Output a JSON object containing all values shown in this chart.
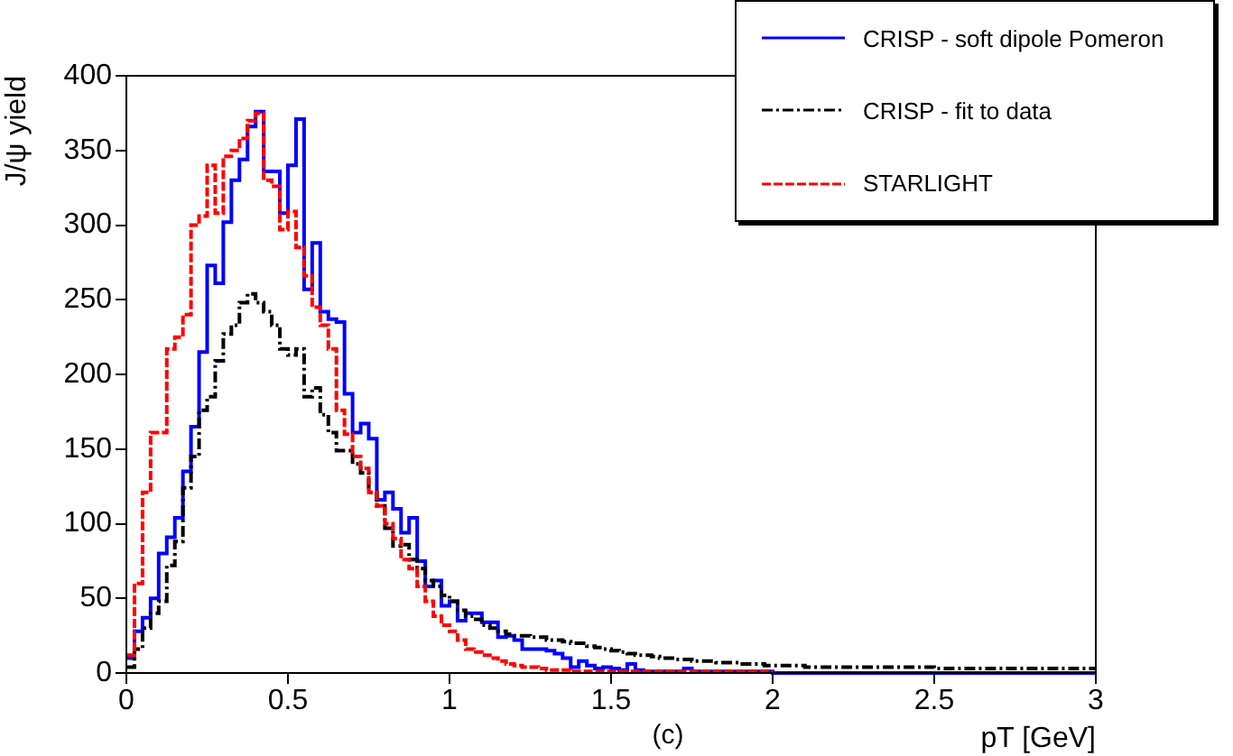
{
  "chart_data": {
    "type": "histogram",
    "xlabel": "pT [GeV]",
    "ylabel": "J/ψ yield",
    "annotations": [
      "(c)"
    ],
    "bins": [
      0,
      0.025,
      0.05,
      0.075,
      0.1,
      0.125,
      0.15,
      0.175,
      0.2,
      0.225,
      0.25,
      0.275,
      0.3,
      0.325,
      0.35,
      0.375,
      0.4,
      0.425,
      0.45,
      0.475,
      0.5,
      0.525,
      0.55,
      0.575,
      0.6,
      0.625,
      0.65,
      0.675,
      0.7,
      0.725,
      0.75,
      0.775,
      0.8,
      0.825,
      0.85,
      0.875,
      0.9,
      0.925,
      0.95,
      0.975,
      1,
      1.025,
      1.05,
      1.075,
      1.1,
      1.125,
      1.15,
      1.175,
      1.2,
      1.225,
      1.25,
      1.275,
      1.3,
      1.325,
      1.35,
      1.375,
      1.4,
      1.425,
      1.45,
      1.475,
      1.5,
      1.525,
      1.55,
      1.575,
      1.6,
      1.625,
      1.65,
      1.675,
      1.7,
      1.725,
      1.75,
      1.775,
      1.8,
      1.825,
      1.85,
      1.875,
      1.9,
      1.925,
      1.95,
      1.975,
      2,
      2.025,
      2.05,
      2.075,
      2.1,
      2.125,
      2.15,
      2.175,
      2.2,
      2.225,
      2.25,
      2.275,
      2.3,
      2.325,
      2.35,
      2.375,
      2.4,
      2.425,
      2.45,
      2.475,
      2.5,
      2.525,
      2.55,
      2.575,
      2.6,
      2.625,
      2.65,
      2.675,
      2.7,
      2.725,
      2.75,
      2.775,
      2.8,
      2.825,
      2.85,
      2.875,
      2.9,
      2.925,
      2.95,
      2.975,
      3
    ],
    "series": [
      {
        "name": "CRISP - soft dipole Pomeron",
        "color": "#0000ff",
        "line_style": "solid",
        "values": [
          10,
          28,
          37,
          50,
          80,
          91,
          104,
          135,
          165,
          215,
          273,
          261,
          302,
          330,
          344,
          366,
          376,
          336,
          336,
          308,
          340,
          371,
          257,
          288,
          242,
          237,
          235,
          187,
          161,
          167,
          157,
          116,
          121,
          110,
          94,
          104,
          75,
          58,
          62,
          45,
          48,
          35,
          40,
          40,
          34,
          34,
          24,
          25,
          22,
          16,
          16,
          16,
          15,
          13,
          10,
          4,
          8,
          5,
          3,
          4,
          3,
          2,
          6,
          2,
          1,
          1,
          1,
          1,
          1,
          3,
          1,
          1,
          1,
          1,
          1,
          1,
          1,
          1,
          1,
          1,
          0,
          0,
          0,
          0,
          0,
          0,
          0,
          0,
          0,
          0,
          0,
          0,
          0,
          0,
          0,
          0,
          0,
          0,
          0,
          0,
          0,
          0,
          0,
          0,
          0,
          0,
          0,
          0,
          0,
          0,
          0,
          0,
          0,
          0,
          0,
          0,
          0,
          0,
          0,
          0
        ]
      },
      {
        "name": "CRISP - fit to data",
        "color": "#000000",
        "line_style": "dashed",
        "values": [
          4,
          16,
          30,
          40,
          48,
          72,
          88,
          124,
          145,
          176,
          185,
          209,
          227,
          233,
          248,
          254,
          248,
          242,
          233,
          217,
          213,
          217,
          185,
          191,
          173,
          161,
          149,
          149,
          140,
          134,
          121,
          112,
          97,
          85,
          86,
          76,
          70,
          62,
          58,
          52,
          48,
          42,
          38,
          36,
          32,
          30,
          28,
          26,
          25,
          25,
          24,
          24,
          22,
          22,
          21,
          20,
          20,
          18,
          17,
          16,
          15,
          14,
          13,
          12,
          12,
          11,
          10,
          10,
          9,
          9,
          8,
          8,
          8,
          7,
          7,
          7,
          6,
          6,
          6,
          5,
          5,
          5,
          5,
          5,
          4,
          4,
          4,
          4,
          4,
          4,
          4,
          4,
          4,
          4,
          4,
          4,
          4,
          4,
          4,
          4,
          3,
          3,
          3,
          3,
          3,
          3,
          3,
          3,
          3,
          3,
          3,
          3,
          3,
          3,
          3,
          3,
          3,
          3,
          3,
          3
        ]
      },
      {
        "name": "STARLIGHT",
        "color": "#ff0000",
        "line_style": "dotted",
        "bins": [
          0,
          0.025,
          0.05,
          0.075,
          0.1,
          0.125,
          0.15,
          0.175,
          0.2,
          0.225,
          0.25,
          0.275,
          0.3,
          0.325,
          0.35,
          0.375,
          0.4,
          0.425,
          0.45,
          0.475,
          0.5,
          0.525,
          0.55,
          0.575,
          0.6,
          0.625,
          0.65,
          0.675,
          0.7,
          0.725,
          0.75,
          0.775,
          0.8,
          0.825,
          0.85,
          0.875,
          0.9,
          0.925,
          0.95,
          0.975,
          1,
          1.025,
          1.05,
          1.075,
          1.1,
          1.125,
          1.15,
          1.175,
          1.2,
          1.225,
          1.25,
          1.275,
          1.3,
          1.325,
          1.35,
          1.375,
          1.4,
          1.425,
          1.45,
          1.475,
          1.5,
          1.525,
          1.55,
          1.575,
          1.6,
          1.625,
          1.65,
          1.675,
          1.7,
          1.725,
          1.75,
          1.775,
          1.8,
          1.825,
          1.85,
          1.875,
          1.9,
          1.925,
          1.95,
          1.975,
          2
        ],
        "values": [
          12,
          60,
          121,
          161,
          161,
          217,
          225,
          240,
          300,
          306,
          340,
          308,
          346,
          350,
          358,
          370,
          375,
          330,
          326,
          297,
          309,
          285,
          266,
          245,
          233,
          217,
          176,
          160,
          145,
          137,
          121,
          112,
          100,
          90,
          76,
          70,
          58,
          48,
          38,
          32,
          28,
          22,
          16,
          14,
          12,
          10,
          8,
          6,
          5,
          4,
          4,
          3,
          2,
          2,
          2,
          1,
          1,
          1,
          1,
          1,
          1,
          1,
          1,
          1,
          1,
          1,
          1,
          1,
          1,
          1,
          1,
          1,
          1,
          1,
          1,
          1,
          1,
          1,
          1,
          1
        ]
      }
    ],
    "xlim": [
      0,
      3
    ],
    "xticks": [
      0,
      0.5,
      1,
      1.5,
      2,
      2.5,
      3
    ],
    "ylim": [
      0,
      400
    ],
    "yticks": [
      0,
      50,
      100,
      150,
      200,
      250,
      300,
      350,
      400
    ],
    "grid": false,
    "legend": "top right"
  }
}
